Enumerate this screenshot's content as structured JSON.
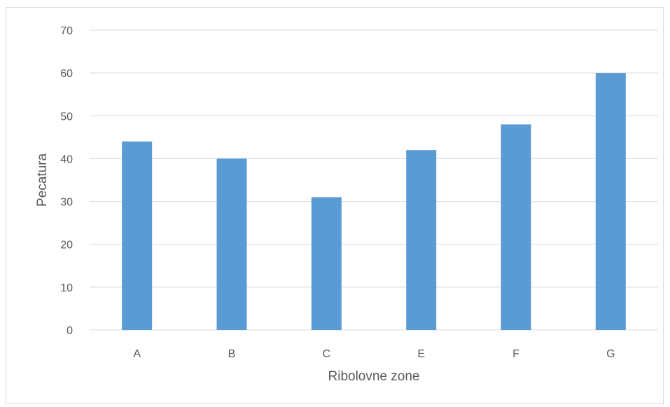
{
  "chart_data": {
    "type": "bar",
    "categories": [
      "A",
      "B",
      "C",
      "E",
      "F",
      "G"
    ],
    "values": [
      44,
      40,
      31,
      42,
      48,
      60
    ],
    "title": "",
    "xlabel": "Ribolovne zone",
    "ylabel": "Pecatura",
    "ylim": [
      0,
      70
    ],
    "yticks": [
      "0",
      "10",
      "20",
      "30",
      "40",
      "50",
      "60",
      "70"
    ],
    "grid": true,
    "legend": "none",
    "bar_color": "#5b9bd5",
    "grid_color": "#d9d9d9"
  }
}
